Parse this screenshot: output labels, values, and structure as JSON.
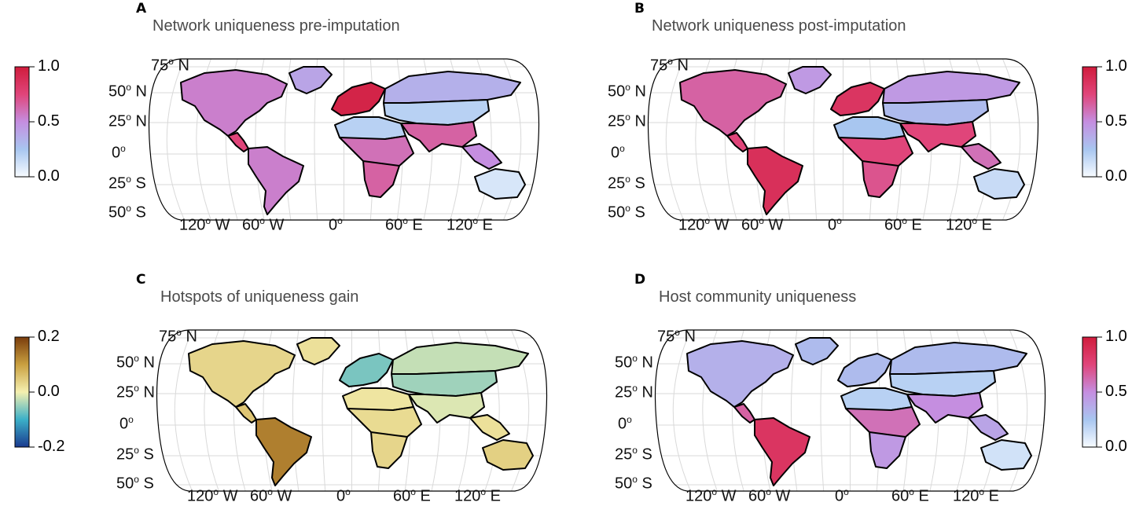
{
  "colors": {
    "uniqueness_scale": [
      "#f7fbff",
      "#a8c6f0",
      "#c58ee0",
      "#e0457a",
      "#d01c3c"
    ],
    "gain_scale": [
      "#1a3a8f",
      "#3cb0c8",
      "#f5f0b0",
      "#c9a040",
      "#7a3c0c"
    ],
    "coastline": "#000000",
    "graticule": "#d9d9d9"
  },
  "panels": [
    {
      "letter": "A",
      "title": "Network uniqueness pre-imputation",
      "colorbar": {
        "position": "left",
        "ticks": [
          "1.0",
          "0.5",
          "0.0"
        ]
      },
      "regions": {
        "north_america": 0.55,
        "central_america": 0.75,
        "south_america": 0.55,
        "greenland": 0.4,
        "europe": 0.95,
        "africa_north": 0.2,
        "africa_central": 0.6,
        "africa_south": 0.65,
        "asia_north": 0.35,
        "asia_central": 0.2,
        "asia_south": 0.65,
        "se_asia": 0.5,
        "australia": 0.1
      }
    },
    {
      "letter": "B",
      "title": "Network uniqueness post-imputation",
      "colorbar": {
        "position": "right",
        "ticks": [
          "1.0",
          "0.5",
          "0.0"
        ]
      },
      "regions": {
        "north_america": 0.65,
        "central_america": 0.75,
        "south_america": 0.88,
        "greenland": 0.45,
        "europe": 0.85,
        "africa_north": 0.25,
        "africa_central": 0.75,
        "africa_south": 0.7,
        "asia_north": 0.45,
        "asia_central": 0.3,
        "asia_south": 0.75,
        "se_asia": 0.6,
        "australia": 0.15
      }
    },
    {
      "letter": "C",
      "title": "Hotspots of uniqueness gain",
      "colorbar": {
        "position": "left",
        "ticks": [
          "0.2",
          "0.0",
          "-0.2"
        ]
      },
      "regions": {
        "north_america": 0.05,
        "central_america": 0.08,
        "south_america": 0.2,
        "greenland": 0.03,
        "europe": -0.1,
        "africa_north": 0.02,
        "africa_central": 0.04,
        "africa_south": 0.05,
        "asia_north": -0.04,
        "asia_central": -0.07,
        "asia_south": -0.02,
        "se_asia": 0.03,
        "australia": 0.06
      }
    },
    {
      "letter": "D",
      "title": "Host community uniqueness",
      "colorbar": {
        "position": "right",
        "ticks": [
          "1.0",
          "0.5",
          "0.0"
        ]
      },
      "regions": {
        "north_america": 0.35,
        "central_america": 0.65,
        "south_america": 0.85,
        "greenland": 0.3,
        "europe": 0.3,
        "africa_north": 0.2,
        "africa_central": 0.6,
        "africa_south": 0.45,
        "asia_north": 0.3,
        "asia_central": 0.2,
        "asia_south": 0.5,
        "se_asia": 0.4,
        "australia": 0.12
      }
    }
  ],
  "lat_labels": [
    {
      "deg": "75",
      "hemi": "N"
    },
    {
      "deg": "50",
      "hemi": "N"
    },
    {
      "deg": "25",
      "hemi": "N"
    },
    {
      "deg": "0",
      "hemi": ""
    },
    {
      "deg": "25",
      "hemi": "S"
    },
    {
      "deg": "50",
      "hemi": "S"
    }
  ],
  "lon_labels": [
    {
      "deg": "120",
      "hemi": "W"
    },
    {
      "deg": "60",
      "hemi": "W"
    },
    {
      "deg": "0",
      "hemi": ""
    },
    {
      "deg": "60",
      "hemi": "E"
    },
    {
      "deg": "120",
      "hemi": "E"
    }
  ]
}
